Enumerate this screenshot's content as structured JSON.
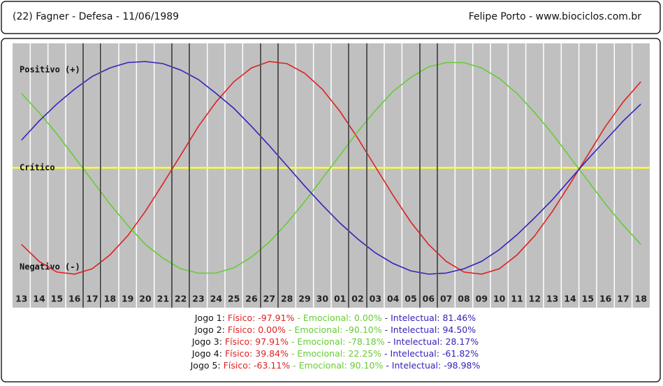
{
  "header": {
    "left": "(22)  Fagner - Defesa -  11/06/1989",
    "right": "Felipe Porto   -   www.biociclos.com.br"
  },
  "chart_data": {
    "type": "line",
    "categories": [
      "13",
      "14",
      "15",
      "16",
      "17",
      "18",
      "19",
      "20",
      "21",
      "22",
      "23",
      "24",
      "25",
      "26",
      "27",
      "28",
      "29",
      "30",
      "01",
      "02",
      "03",
      "04",
      "05",
      "06",
      "07",
      "08",
      "09",
      "10",
      "11",
      "12",
      "13",
      "14",
      "15",
      "16",
      "17",
      "18"
    ],
    "series": [
      {
        "color": "#e02020",
        "values": [
          -72,
          -88,
          -98,
          -100,
          -95,
          -82,
          -64,
          -41,
          -15,
          12,
          39,
          62,
          81,
          94,
          100,
          98,
          89,
          74,
          53,
          28,
          1,
          -26,
          -51,
          -72,
          -88,
          -98,
          -100,
          -95,
          -82,
          -64,
          -41,
          -15,
          12,
          39,
          62,
          81
        ]
      },
      {
        "color": "#66cc33",
        "values": [
          70,
          52,
          32,
          10,
          -12,
          -34,
          -54,
          -72,
          -85,
          -95,
          -99,
          -99,
          -94,
          -84,
          -70,
          -52,
          -32,
          -10,
          12,
          34,
          54,
          72,
          85,
          95,
          99,
          99,
          94,
          84,
          70,
          52,
          32,
          10,
          -12,
          -34,
          -54,
          -72
        ]
      },
      {
        "color": "#3322bb",
        "values": [
          26,
          44,
          60,
          74,
          86,
          94,
          99,
          100,
          98,
          92,
          83,
          70,
          56,
          39,
          21,
          2,
          -17,
          -35,
          -52,
          -67,
          -80,
          -90,
          -97,
          -100,
          -99,
          -95,
          -88,
          -77,
          -63,
          -47,
          -30,
          -11,
          8,
          26,
          44,
          60
        ]
      }
    ],
    "ylim": [
      -100,
      100
    ],
    "yticks": [
      {
        "value": 100,
        "label": "Positivo (+)"
      },
      {
        "value": 0,
        "label": "Crítico"
      },
      {
        "value": -100,
        "label": "Negativo (-)"
      }
    ]
  },
  "games": [
    {
      "label": "Jogo 1:",
      "fisico": "Físico: -97.91%",
      "emocional": "- Emocional: 0.00%",
      "intelectual": "- Intelectual: 81.46%"
    },
    {
      "label": "Jogo 2:",
      "fisico": "Físico: 0.00%",
      "emocional": "- Emocional: -90.10%",
      "intelectual": "- Intelectual: 94.50%"
    },
    {
      "label": "Jogo 3:",
      "fisico": "Físico: 97.91%",
      "emocional": "- Emocional: -78.18%",
      "intelectual": "- Intelectual: 28.17%"
    },
    {
      "label": "Jogo 4:",
      "fisico": "Físico: 39.84%",
      "emocional": "- Emocional: 22.25%",
      "intelectual": "- Intelectual: -61.82%"
    },
    {
      "label": "Jogo 5:",
      "fisico": "Físico: -63.11%",
      "emocional": "- Emocional: 90.10%",
      "intelectual": "- Intelectual: -98.98%"
    }
  ]
}
